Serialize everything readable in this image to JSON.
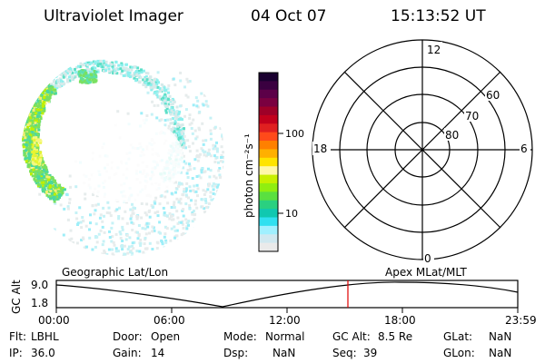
{
  "header": {
    "instrument": "Ultraviolet Imager",
    "date": "04 Oct 07",
    "time": "15:13:52 UT"
  },
  "colorbar": {
    "unit_label": "photon cm⁻²s⁻¹",
    "tick_labels": [
      "100",
      "10"
    ],
    "colors": [
      "#1a0030",
      "#3a0040",
      "#5c0048",
      "#7a0040",
      "#9e0028",
      "#c2001c",
      "#e02020",
      "#ff4a1a",
      "#ff8000",
      "#ffb000",
      "#ffe400",
      "#fff7a8",
      "#c8f000",
      "#90ee10",
      "#5ae040",
      "#2ad080",
      "#10c8b0",
      "#30e0f0",
      "#a0f0ff",
      "#d0e8f0",
      "#eaeaea"
    ]
  },
  "polar": {
    "mlt_labels": [
      "12",
      "18",
      "6",
      "0"
    ],
    "lat_labels": [
      "60",
      "70",
      "80"
    ]
  },
  "timeline": {
    "left_label": "Geographic Lat/Lon",
    "right_label": "Apex MLat/MLT",
    "axis_label": "GC Alt",
    "y_ticks": [
      "9.0",
      "1.8"
    ],
    "x_ticks": [
      "00:00",
      "06:00",
      "12:00",
      "18:00",
      "23:59"
    ],
    "marker_color": "#e00000"
  },
  "info": {
    "flt_label": "Flt:",
    "flt_value": "LBHL",
    "door_label": "Door:",
    "door_value": "Open",
    "mode_label": "Mode:",
    "mode_value": "Normal",
    "gcalt_label": "GC Alt:",
    "gcalt_value": "8.5 Re",
    "glat_label": "GLat:",
    "glat_value": "NaN",
    "ip_label": "IP:",
    "ip_value": "36.0",
    "gain_label": "Gain:",
    "gain_value": "14",
    "dsp_label": "Dsp:",
    "dsp_value": "NaN",
    "seq_label": "Seq:",
    "seq_value": "39",
    "glon_label": "GLon:",
    "glon_value": "NaN"
  }
}
